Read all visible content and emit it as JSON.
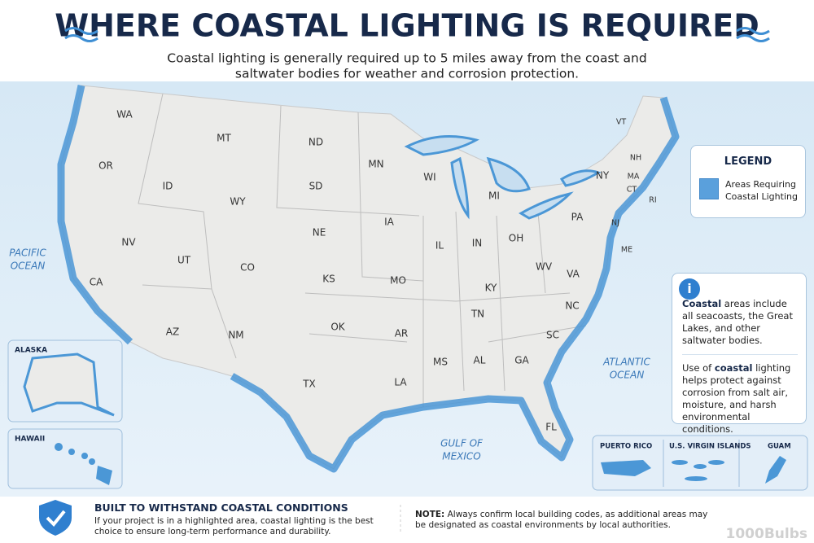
{
  "title": "WHERE COASTAL LIGHTING IS REQUIRED",
  "subtitle": [
    "Coastal lighting is generally required up to 5 miles away from the coast and",
    "saltwater bodies for weather and corrosion protection."
  ],
  "states": [
    "WA",
    "OR",
    "CA",
    "NV",
    "ID",
    "MT",
    "WY",
    "UT",
    "AZ",
    "CO",
    "NM",
    "ND",
    "SD",
    "NE",
    "KS",
    "OK",
    "TX",
    "MN",
    "IA",
    "MO",
    "AR",
    "LA",
    "WI",
    "IL",
    "MI",
    "IN",
    "OH",
    "KY",
    "TN",
    "MS",
    "AL",
    "GA",
    "FL",
    "SC",
    "NC",
    "VA",
    "WV",
    "PA",
    "NY",
    "VT",
    "NH",
    "MA",
    "CT",
    "RI",
    "NJ",
    "ME"
  ],
  "oceans": {
    "pacific": [
      "PACIFIC",
      "OCEAN"
    ],
    "atlantic": [
      "ATLANTIC",
      "OCEAN"
    ],
    "gulf": [
      "GULF OF",
      "MEXICO"
    ]
  },
  "legend": {
    "title": "LEGEND",
    "item": [
      "Areas Requiring",
      "Coastal Lighting"
    ]
  },
  "info": {
    "p1": [
      "Coastal",
      " areas include all seacoasts, the Great Lakes, and other saltwater bodies."
    ],
    "p2": [
      "Use of ",
      "coastal",
      " lighting helps protect against corrosion from salt air, moisture, and harsh environmental conditions."
    ]
  },
  "insets": {
    "alaska": "ALASKA",
    "hawaii": "HAWAII",
    "puerto_rico": "PUERTO RICO",
    "virgin_islands": "U.S. VIRGIN ISLANDS",
    "guam": "GUAM"
  },
  "footer": {
    "heading": "BUILT TO WITHSTAND COASTAL CONDITIONS",
    "text": "If your project is in a highlighted area, coastal lighting is the best choice to ensure long-term performance and durability.",
    "note_label": "NOTE:",
    "note": " Always confirm local building codes, as additional areas may be designated as coastal environments by local authorities.",
    "logo": "1000Bulbs"
  }
}
